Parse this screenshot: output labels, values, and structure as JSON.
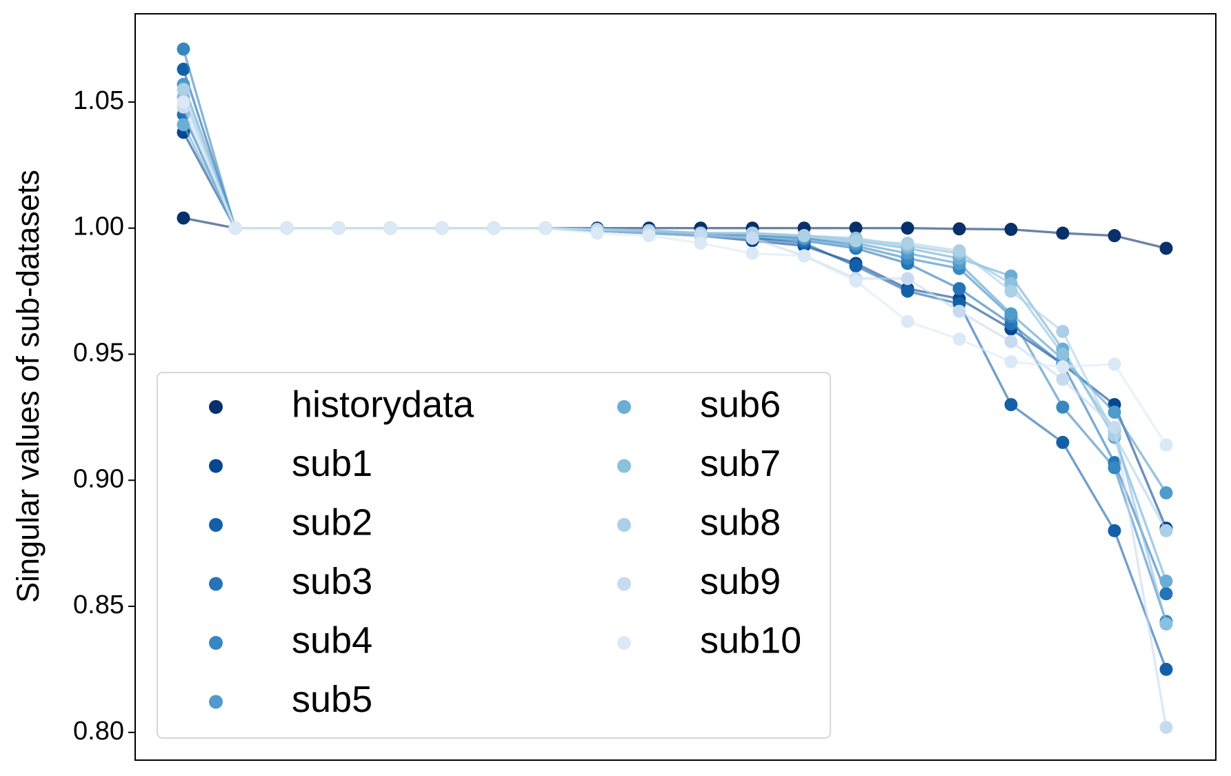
{
  "chart_data": {
    "type": "line",
    "ylabel": "Singular values of sub-datasets",
    "categories": [
      null,
      null,
      null,
      null,
      null,
      null,
      null,
      null,
      null,
      null,
      null,
      null,
      null,
      null,
      null,
      null,
      null,
      null,
      null,
      null
    ],
    "ylim": [
      0.789,
      1.085
    ],
    "yticks": [
      {
        "value": 0.8,
        "label": "0.80"
      },
      0.85,
      {
        "value": 0.9,
        "label": "0.90"
      },
      0.95,
      {
        "value": 1.0,
        "label": "1.00"
      },
      1.05
    ],
    "legend": "lower left",
    "series": [
      {
        "name": "historydata",
        "color": "#08306b",
        "values": [
          1.004,
          1.0,
          1.0,
          1.0,
          1.0,
          1.0,
          1.0,
          1.0,
          1.0,
          1.0,
          1.0,
          1.0,
          1.0,
          1.0,
          1.0,
          0.9997,
          0.9995,
          0.998,
          0.997,
          0.992
        ]
      },
      {
        "name": "sub1",
        "color": "#08468f",
        "values": [
          1.038,
          1.0,
          1.0,
          1.0,
          1.0,
          1.0,
          1.0,
          1.0,
          0.999,
          0.998,
          0.997,
          0.995,
          0.993,
          0.986,
          0.976,
          0.972,
          0.96,
          0.946,
          0.93,
          0.881
        ]
      },
      {
        "name": "sub2",
        "color": "#1460a8",
        "values": [
          1.063,
          1.0,
          1.0,
          1.0,
          1.0,
          1.0,
          1.0,
          1.0,
          0.999,
          0.998,
          0.997,
          0.996,
          0.994,
          0.985,
          0.975,
          0.97,
          0.93,
          0.915,
          0.88,
          0.825
        ]
      },
      {
        "name": "sub3",
        "color": "#2474b7",
        "values": [
          1.045,
          1.0,
          1.0,
          1.0,
          1.0,
          1.0,
          1.0,
          1.0,
          0.999,
          0.998,
          0.997,
          0.996,
          0.995,
          0.992,
          0.986,
          0.976,
          0.962,
          0.946,
          0.907,
          0.855
        ]
      },
      {
        "name": "sub4",
        "color": "#3787c0",
        "values": [
          1.071,
          1.0,
          1.0,
          1.0,
          1.0,
          1.0,
          1.0,
          1.0,
          0.9995,
          0.999,
          0.998,
          0.997,
          0.996,
          0.993,
          0.988,
          0.984,
          0.965,
          0.929,
          0.905,
          0.844
        ]
      },
      {
        "name": "sub5",
        "color": "#4f9bcb",
        "values": [
          1.057,
          1.0,
          1.0,
          1.0,
          1.0,
          1.0,
          1.0,
          1.0,
          0.9995,
          0.999,
          0.998,
          0.997,
          0.996,
          0.994,
          0.99,
          0.986,
          0.966,
          0.948,
          0.927,
          0.895
        ]
      },
      {
        "name": "sub6",
        "color": "#6aaed6",
        "values": [
          1.041,
          1.0,
          1.0,
          1.0,
          1.0,
          1.0,
          1.0,
          1.0,
          0.9995,
          0.999,
          0.998,
          0.998,
          0.997,
          0.995,
          0.992,
          0.988,
          0.981,
          0.952,
          0.917,
          0.86
        ]
      },
      {
        "name": "sub7",
        "color": "#8cc0dd",
        "values": [
          1.052,
          1.0,
          1.0,
          1.0,
          1.0,
          1.0,
          1.0,
          1.0,
          0.9995,
          0.999,
          0.998,
          0.998,
          0.997,
          0.996,
          0.993,
          0.99,
          0.978,
          0.95,
          0.92,
          0.843
        ]
      },
      {
        "name": "sub8",
        "color": "#abd0e6",
        "values": [
          1.055,
          1.0,
          1.0,
          1.0,
          1.0,
          1.0,
          1.0,
          1.0,
          0.9995,
          0.999,
          0.998,
          0.998,
          0.997,
          0.995,
          0.994,
          0.991,
          0.975,
          0.959,
          0.918,
          0.88
        ]
      },
      {
        "name": "sub9",
        "color": "#c6dbef",
        "values": [
          1.048,
          1.0,
          1.0,
          1.0,
          1.0,
          1.0,
          1.0,
          1.0,
          0.999,
          0.998,
          0.997,
          0.996,
          0.989,
          0.98,
          0.98,
          0.967,
          0.955,
          0.94,
          0.921,
          0.802
        ]
      },
      {
        "name": "sub10",
        "color": "#dbe9f6",
        "values": [
          1.05,
          1.0,
          1.0,
          1.0,
          1.0,
          1.0,
          1.0,
          1.0,
          0.998,
          0.997,
          0.994,
          0.99,
          0.989,
          0.979,
          0.963,
          0.956,
          0.947,
          0.945,
          0.946,
          0.914
        ]
      }
    ]
  }
}
